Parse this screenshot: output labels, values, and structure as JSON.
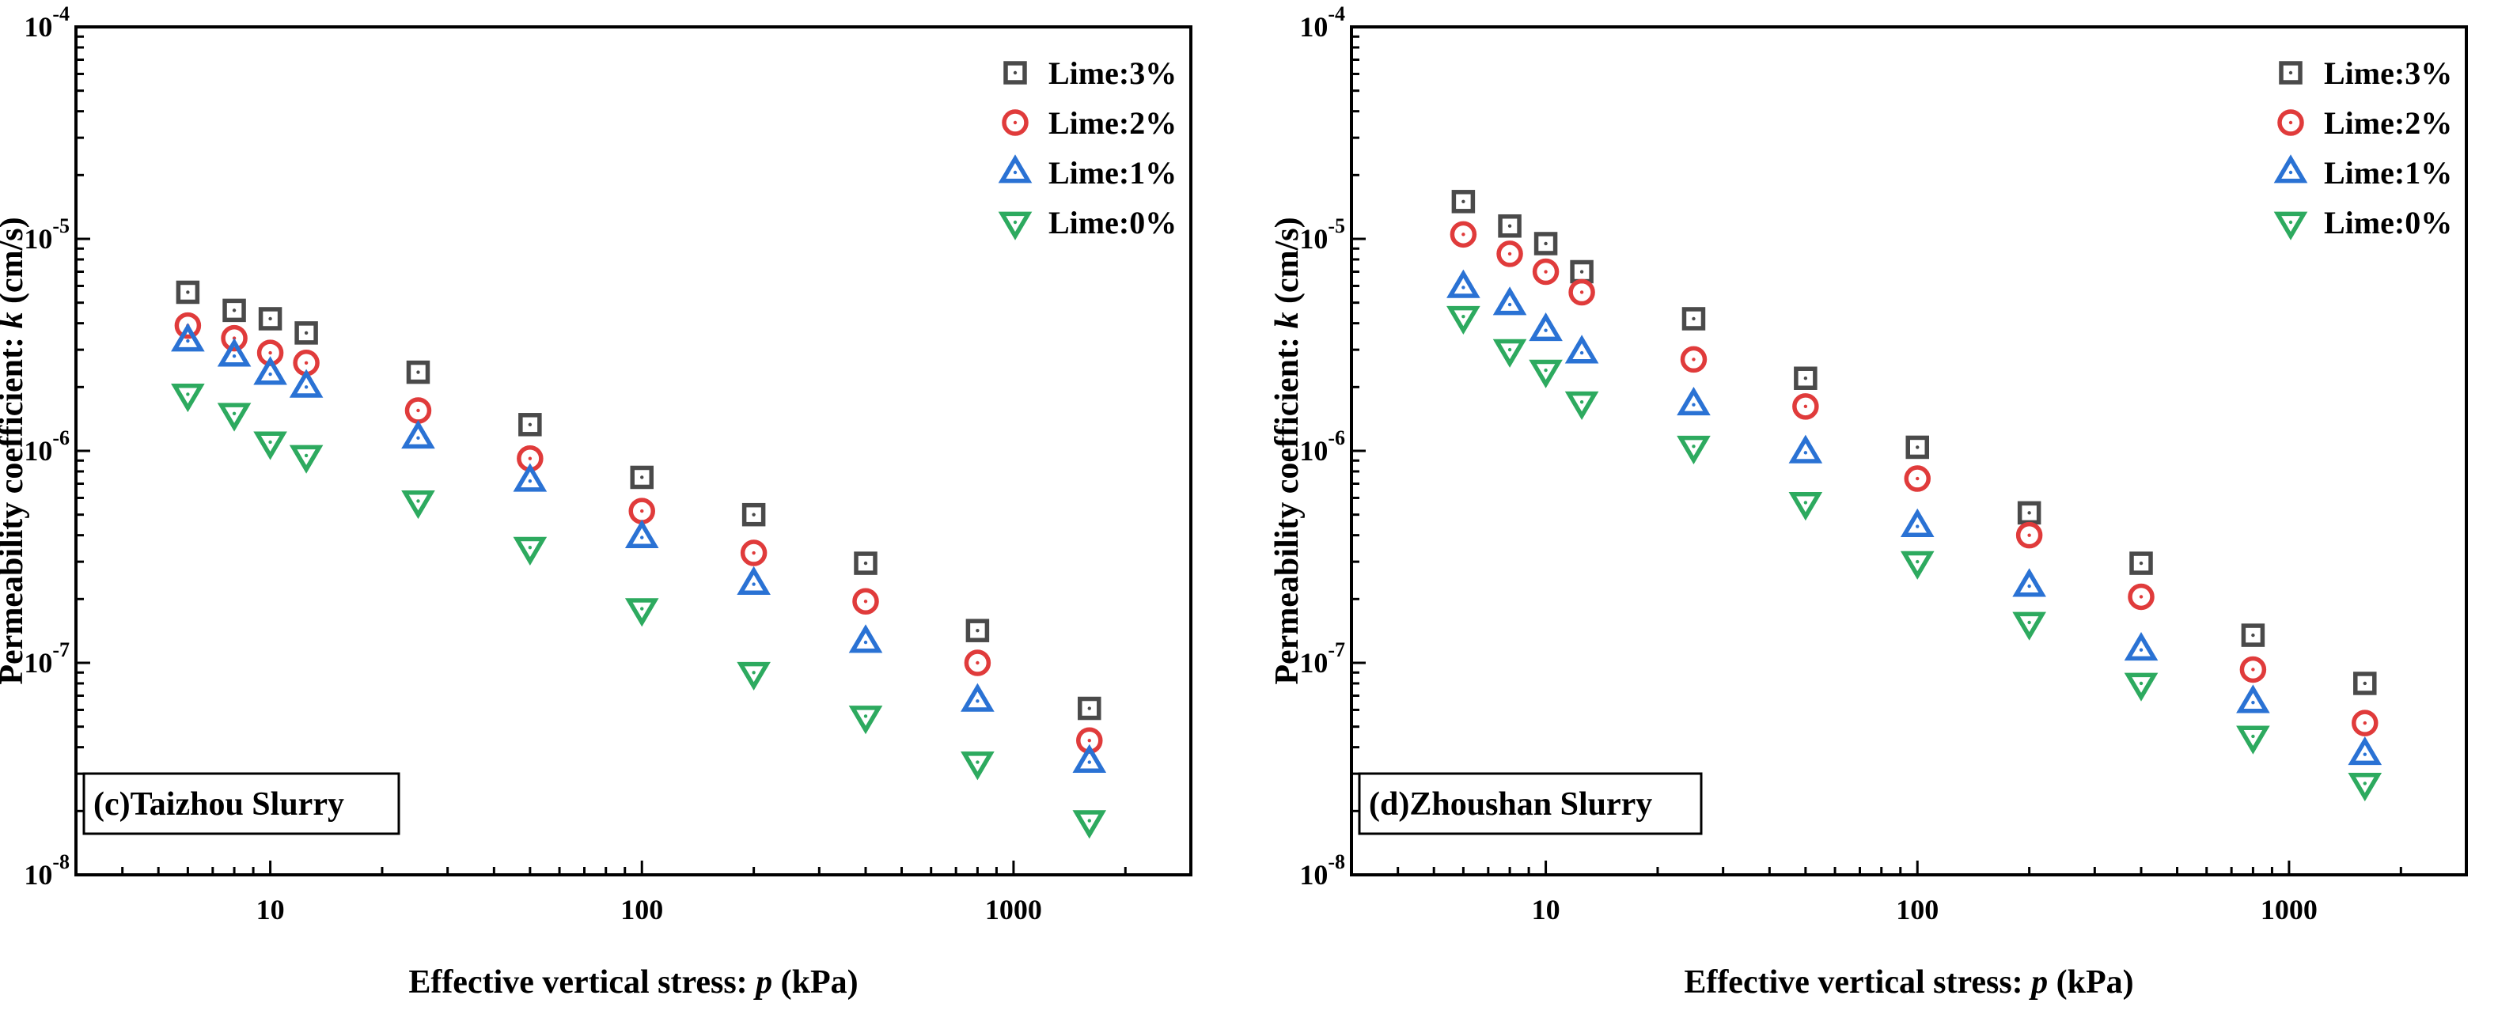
{
  "chart_data": [
    {
      "type": "scatter",
      "title": "(c)Taizhou Slurry",
      "xlabel": {
        "prefix": "Effective vertical stress: ",
        "var": "p",
        "suffix": " (kPa)"
      },
      "ylabel": {
        "prefix": "Permeability coefficient: ",
        "var": "k",
        "suffix": " (cm/s)"
      },
      "xscale": "log",
      "yscale": "log",
      "xlim": [
        3,
        3000
      ],
      "ylim": [
        1e-08,
        0.0001
      ],
      "xticks": [
        10,
        100,
        1000
      ],
      "xtick_labels": [
        "10",
        "100",
        "1000"
      ],
      "yticks": [
        {
          "exp": -8,
          "base": "10",
          "power": "-8"
        },
        {
          "exp": -7,
          "base": "10",
          "power": "-7"
        },
        {
          "exp": -6,
          "base": "10",
          "power": "-6"
        },
        {
          "exp": -5,
          "base": "10",
          "power": "-5"
        },
        {
          "exp": -4,
          "base": "10",
          "power": "-4"
        }
      ],
      "legend_position": "top-right",
      "x": [
        6,
        8,
        10,
        12.5,
        25,
        50,
        100,
        200,
        400,
        800,
        1600
      ],
      "series": [
        {
          "name": "Lime:3%",
          "marker": "square",
          "color": "#4a4a4a",
          "values": [
            5.6e-06,
            4.6e-06,
            4.2e-06,
            3.6e-06,
            2.35e-06,
            1.33e-06,
            7.5e-07,
            5e-07,
            2.95e-07,
            1.42e-07,
            6.1e-08
          ]
        },
        {
          "name": "Lime:2%",
          "marker": "circle",
          "color": "#e03b3b",
          "values": [
            3.9e-06,
            3.4e-06,
            2.9e-06,
            2.6e-06,
            1.55e-06,
            9.2e-07,
            5.2e-07,
            3.3e-07,
            1.95e-07,
            1e-07,
            4.3e-08
          ]
        },
        {
          "name": "Lime:1%",
          "marker": "triangle-up",
          "color": "#2a72d4",
          "values": [
            3.3e-06,
            2.8e-06,
            2.3e-06,
            2e-06,
            1.15e-06,
            7.2e-07,
            3.9e-07,
            2.35e-07,
            1.25e-07,
            6.6e-08,
            3.4e-08
          ]
        },
        {
          "name": "Lime:0%",
          "marker": "triangle-down",
          "color": "#2daa5f",
          "values": [
            1.85e-06,
            1.5e-06,
            1.1e-06,
            9.5e-07,
            5.8e-07,
            3.5e-07,
            1.8e-07,
            9e-08,
            5.6e-08,
            3.4e-08,
            1.8e-08
          ]
        }
      ]
    },
    {
      "type": "scatter",
      "title": "(d)Zhoushan Slurry",
      "xlabel": {
        "prefix": "Effective vertical stress: ",
        "var": "p",
        "suffix": " (kPa)"
      },
      "ylabel": {
        "prefix": "Permeability coefficient: ",
        "var": "k",
        "suffix": " (cm/s)"
      },
      "xscale": "log",
      "yscale": "log",
      "xlim": [
        3,
        3000
      ],
      "ylim": [
        1e-08,
        0.0001
      ],
      "xticks": [
        10,
        100,
        1000
      ],
      "xtick_labels": [
        "10",
        "100",
        "1000"
      ],
      "yticks": [
        {
          "exp": -8,
          "base": "10",
          "power": "-8"
        },
        {
          "exp": -7,
          "base": "10",
          "power": "-7"
        },
        {
          "exp": -6,
          "base": "10",
          "power": "-6"
        },
        {
          "exp": -5,
          "base": "10",
          "power": "-5"
        },
        {
          "exp": -4,
          "base": "10",
          "power": "-4"
        }
      ],
      "legend_position": "top-right",
      "x": [
        6,
        8,
        10,
        12.5,
        25,
        50,
        100,
        200,
        400,
        800,
        1600
      ],
      "series": [
        {
          "name": "Lime:3%",
          "marker": "square",
          "color": "#4a4a4a",
          "values": [
            1.5e-05,
            1.15e-05,
            9.5e-06,
            7e-06,
            4.2e-06,
            2.2e-06,
            1.04e-06,
            5.1e-07,
            2.95e-07,
            1.35e-07,
            8e-08
          ]
        },
        {
          "name": "Lime:2%",
          "marker": "circle",
          "color": "#e03b3b",
          "values": [
            1.05e-05,
            8.5e-06,
            7e-06,
            5.6e-06,
            2.7e-06,
            1.62e-06,
            7.4e-07,
            4e-07,
            2.05e-07,
            9.3e-08,
            5.2e-08
          ]
        },
        {
          "name": "Lime:1%",
          "marker": "triangle-up",
          "color": "#2a72d4",
          "values": [
            5.9e-06,
            4.9e-06,
            3.7e-06,
            2.9e-06,
            1.65e-06,
            9.8e-07,
            4.4e-07,
            2.3e-07,
            1.15e-07,
            6.5e-08,
            3.7e-08
          ]
        },
        {
          "name": "Lime:0%",
          "marker": "triangle-down",
          "color": "#2daa5f",
          "values": [
            4.3e-06,
            3e-06,
            2.4e-06,
            1.7e-06,
            1.05e-06,
            5.7e-07,
            3e-07,
            1.55e-07,
            8e-08,
            4.5e-08,
            2.7e-08
          ]
        }
      ]
    }
  ]
}
